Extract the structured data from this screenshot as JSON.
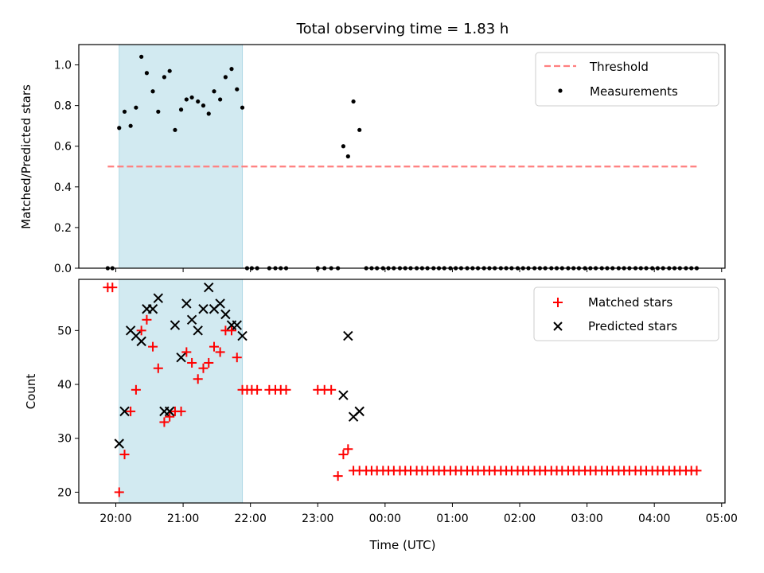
{
  "chart_data": {
    "title": "Total observing time = 1.83 h",
    "xlabel": "Time (UTC)",
    "x_tick_labels": [
      "20:00",
      "21:00",
      "22:00",
      "23:00",
      "00:00",
      "01:00",
      "02:00",
      "03:00",
      "04:00",
      "05:00"
    ],
    "x_range_hours": [
      19.45,
      29.05
    ],
    "highlight_span": [
      20.05,
      21.88
    ],
    "colors": {
      "threshold": "#ff7f7f",
      "span": "#add8e6",
      "matched": "#ff0000",
      "predicted": "#000000",
      "measurement": "#000000"
    },
    "panels": [
      {
        "type": "scatter",
        "ylabel": "Matched/Predicted stars",
        "ylim": [
          0,
          1.1
        ],
        "y_ticks": [
          0,
          0.2,
          0.4,
          0.6,
          0.8,
          1.0
        ],
        "y_tick_labels": [
          "0.0",
          "0.2",
          "0.4",
          "0.6",
          "0.8",
          "1.0"
        ],
        "legend": {
          "placement": "top-right",
          "entries": [
            "Threshold",
            "Measurements"
          ]
        },
        "threshold": {
          "name": "Threshold",
          "y": 0.5,
          "x_start": 19.88,
          "x_end": 28.63
        },
        "series": [
          {
            "name": "Measurements",
            "x": [
              19.88,
              19.95,
              20.05,
              20.13,
              20.22,
              20.3,
              20.38,
              20.46,
              20.55,
              20.63,
              20.72,
              20.8,
              20.88,
              20.97,
              21.05,
              21.13,
              21.22,
              21.3,
              21.38,
              21.46,
              21.55,
              21.63,
              21.72,
              21.8,
              21.88,
              21.95,
              22.02,
              22.1,
              22.28,
              22.37,
              22.45,
              22.53,
              23.0,
              23.1,
              23.2,
              23.3,
              23.38,
              23.45,
              23.53,
              23.62,
              23.72,
              23.8,
              23.88,
              23.97,
              24.05,
              24.13,
              24.22,
              24.3,
              24.38,
              24.47,
              24.55,
              24.63,
              24.72,
              24.8,
              24.88,
              24.97,
              25.05,
              25.13,
              25.22,
              25.3,
              25.38,
              25.47,
              25.55,
              25.63,
              25.72,
              25.8,
              25.88,
              25.97,
              26.05,
              26.13,
              26.22,
              26.3,
              26.38,
              26.47,
              26.55,
              26.63,
              26.72,
              26.8,
              26.88,
              26.97,
              27.05,
              27.13,
              27.22,
              27.3,
              27.38,
              27.47,
              27.55,
              27.63,
              27.72,
              27.8,
              27.88,
              27.97,
              28.05,
              28.13,
              28.22,
              28.3,
              28.38,
              28.47,
              28.55,
              28.63
            ],
            "y": [
              0,
              0,
              0.69,
              0.77,
              0.7,
              0.79,
              1.04,
              0.96,
              0.87,
              0.77,
              0.94,
              0.97,
              0.68,
              0.78,
              0.83,
              0.84,
              0.82,
              0.8,
              0.76,
              0.87,
              0.83,
              0.94,
              0.98,
              0.88,
              0.79,
              0,
              0,
              0,
              0,
              0,
              0,
              0,
              0,
              0,
              0,
              0,
              0.6,
              0.55,
              0.82,
              0.68,
              0,
              0,
              0,
              0,
              0,
              0,
              0,
              0,
              0,
              0,
              0,
              0,
              0,
              0,
              0,
              0,
              0,
              0,
              0,
              0,
              0,
              0,
              0,
              0,
              0,
              0,
              0,
              0,
              0,
              0,
              0,
              0,
              0,
              0,
              0,
              0,
              0,
              0,
              0,
              0,
              0,
              0,
              0,
              0,
              0,
              0,
              0,
              0,
              0,
              0,
              0,
              0,
              0,
              0,
              0,
              0,
              0,
              0,
              0,
              0
            ]
          }
        ]
      },
      {
        "type": "scatter",
        "ylabel": "Count",
        "ylim": [
          18,
          59.5
        ],
        "y_ticks": [
          20,
          30,
          40,
          50
        ],
        "y_tick_labels": [
          "20",
          "30",
          "40",
          "50"
        ],
        "legend": {
          "placement": "top-right",
          "entries": [
            "Matched stars",
            "Predicted stars"
          ]
        },
        "series": [
          {
            "name": "Matched stars",
            "marker": "plus",
            "x": [
              19.88,
              19.95,
              20.05,
              20.13,
              20.22,
              20.3,
              20.38,
              20.46,
              20.55,
              20.63,
              20.72,
              20.8,
              20.88,
              20.97,
              21.05,
              21.13,
              21.22,
              21.3,
              21.38,
              21.46,
              21.55,
              21.63,
              21.72,
              21.8,
              21.88,
              21.95,
              22.02,
              22.1,
              22.28,
              22.37,
              22.45,
              22.53,
              23.0,
              23.1,
              23.2,
              23.3,
              23.38,
              23.45,
              23.53,
              23.62,
              23.72,
              23.8,
              23.88,
              23.97,
              24.05,
              24.13,
              24.22,
              24.3,
              24.38,
              24.47,
              24.55,
              24.63,
              24.72,
              24.8,
              24.88,
              24.97,
              25.05,
              25.13,
              25.22,
              25.3,
              25.38,
              25.47,
              25.55,
              25.63,
              25.72,
              25.8,
              25.88,
              25.97,
              26.05,
              26.13,
              26.22,
              26.3,
              26.38,
              26.47,
              26.55,
              26.63,
              26.72,
              26.8,
              26.88,
              26.97,
              27.05,
              27.13,
              27.22,
              27.3,
              27.38,
              27.47,
              27.55,
              27.63,
              27.72,
              27.8,
              27.88,
              27.97,
              28.05,
              28.13,
              28.22,
              28.3,
              28.38,
              28.47,
              28.55,
              28.63
            ],
            "y": [
              58,
              58,
              20,
              27,
              35,
              39,
              50,
              52,
              47,
              43,
              33,
              34,
              35,
              35,
              46,
              44,
              41,
              43,
              44,
              47,
              46,
              50,
              50,
              45,
              39,
              39,
              39,
              39,
              39,
              39,
              39,
              39,
              39,
              39,
              39,
              23,
              27,
              28,
              24,
              24,
              24,
              24,
              24,
              24,
              24,
              24,
              24,
              24,
              24,
              24,
              24,
              24,
              24,
              24,
              24,
              24,
              24,
              24,
              24,
              24,
              24,
              24,
              24,
              24,
              24,
              24,
              24,
              24,
              24,
              24,
              24,
              24,
              24,
              24,
              24,
              24,
              24,
              24,
              24,
              24,
              24,
              24,
              24,
              24,
              24,
              24,
              24,
              24,
              24,
              24,
              24,
              24,
              24,
              24,
              24,
              24,
              24,
              24,
              24,
              24
            ]
          },
          {
            "name": "Predicted stars",
            "marker": "x",
            "x": [
              20.05,
              20.13,
              20.22,
              20.3,
              20.38,
              20.46,
              20.55,
              20.63,
              20.72,
              20.8,
              20.88,
              20.97,
              21.05,
              21.13,
              21.22,
              21.3,
              21.38,
              21.46,
              21.55,
              21.63,
              21.72,
              21.8,
              21.88,
              23.38,
              23.45,
              23.53,
              23.62
            ],
            "y": [
              29,
              35,
              50,
              49,
              48,
              54,
              54,
              56,
              35,
              35,
              51,
              45,
              55,
              52,
              50,
              54,
              58,
              54,
              55,
              53,
              51,
              51,
              49,
              38,
              49,
              34,
              35
            ]
          }
        ]
      }
    ]
  }
}
